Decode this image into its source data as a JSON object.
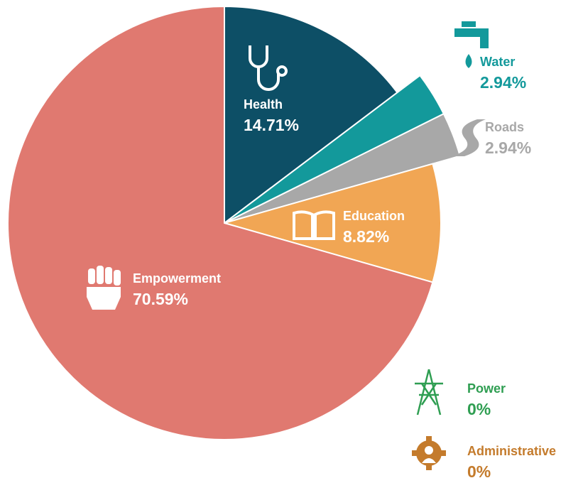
{
  "chart_data": {
    "type": "pie",
    "categories": [
      "Health",
      "Water",
      "Roads",
      "Education",
      "Empowerment",
      "Power",
      "Administrative"
    ],
    "values": [
      14.71,
      2.94,
      2.94,
      8.82,
      70.59,
      0,
      0
    ],
    "value_labels": [
      "14.71%",
      "2.94%",
      "2.94%",
      "8.82%",
      "70.59%",
      "0%",
      "0%"
    ],
    "colors": [
      "#0d4f66",
      "#13999b",
      "#a8a8a8",
      "#f1a654",
      "#e07970",
      "#2f9e52",
      "#c47b2c"
    ]
  }
}
